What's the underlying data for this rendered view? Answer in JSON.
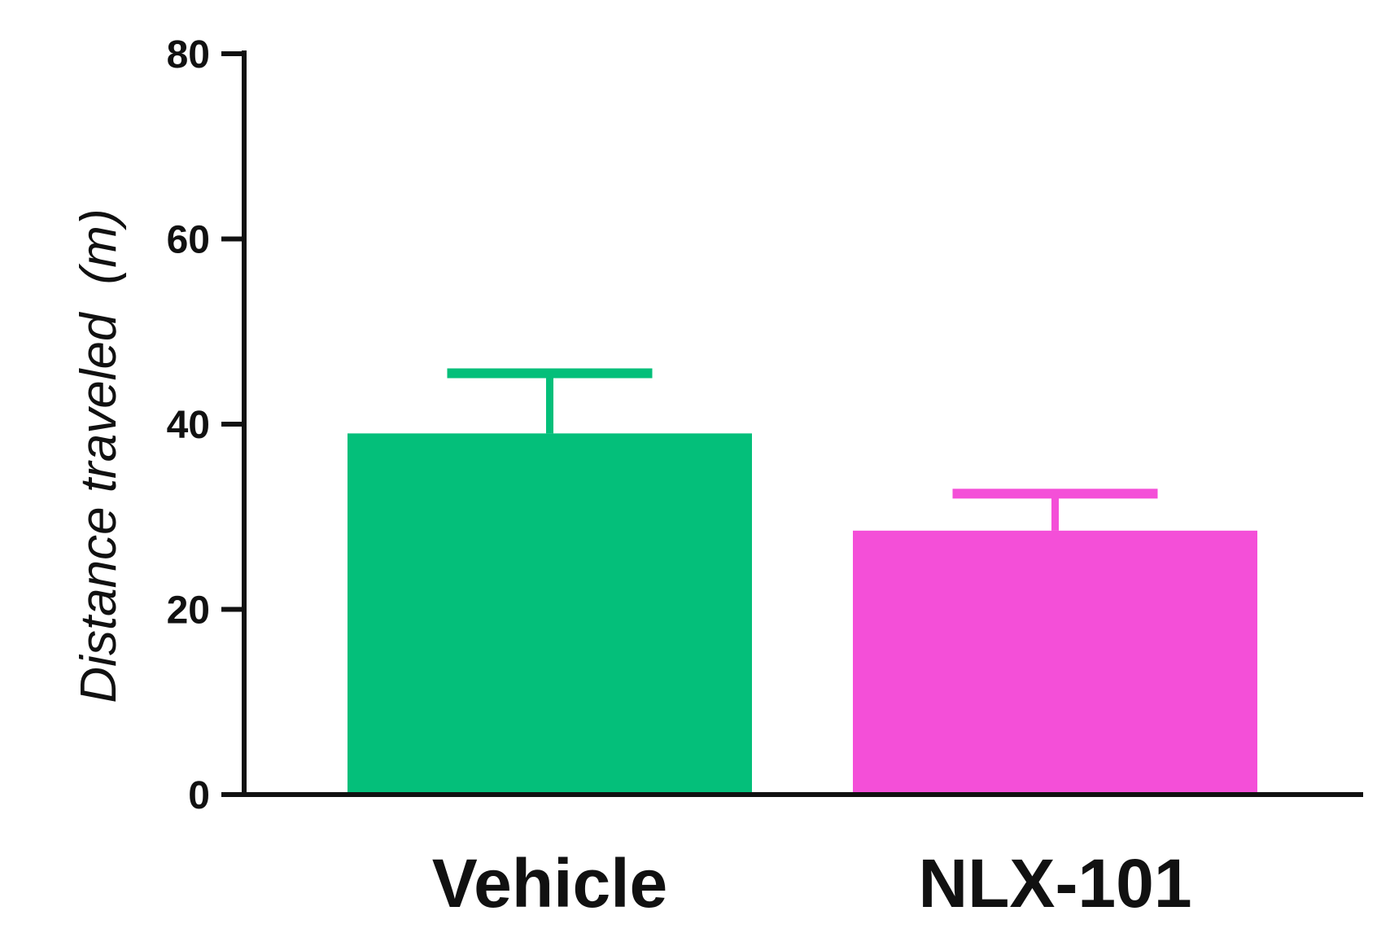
{
  "chart_data": {
    "type": "bar",
    "categories": [
      "Vehicle",
      "NLX-101"
    ],
    "values": [
      39,
      28.5
    ],
    "errors": [
      6.5,
      4
    ],
    "colors": [
      "#04BF7A",
      "#F44FD8"
    ],
    "ylabel": {
      "main": "Distance traveled",
      "unit": "(m)"
    },
    "ylim": [
      0,
      80
    ],
    "yticks": [
      0,
      20,
      40,
      60,
      80
    ],
    "grid": false
  }
}
